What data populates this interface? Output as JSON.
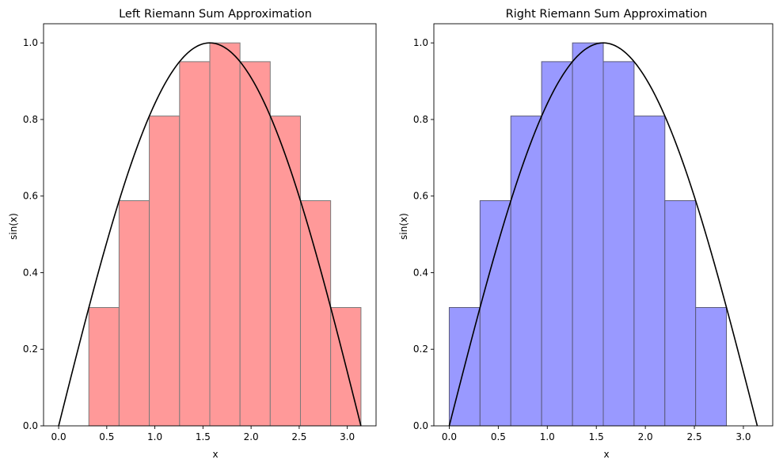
{
  "chart_data": [
    {
      "type": "bar",
      "title": "Left Riemann Sum Approximation",
      "xlabel": "x",
      "ylabel": "sin(x)",
      "xlim": [
        -0.157,
        3.299
      ],
      "ylim": [
        0,
        1.05
      ],
      "xticks": [
        "0.0",
        "0.5",
        "1.0",
        "1.5",
        "2.0",
        "2.5",
        "3.0"
      ],
      "yticks": [
        "0.0",
        "0.2",
        "0.4",
        "0.6",
        "0.8",
        "1.0"
      ],
      "bar_color": "#ff9999",
      "edge_color": "#7a7a7a",
      "curve_color": "#000000",
      "grid": false,
      "bars": [
        {
          "x0": 0.314,
          "x1": 0.628,
          "value": 0.309
        },
        {
          "x0": 0.628,
          "x1": 0.942,
          "value": 0.588
        },
        {
          "x0": 0.942,
          "x1": 1.257,
          "value": 0.809
        },
        {
          "x0": 1.257,
          "x1": 1.571,
          "value": 0.951
        },
        {
          "x0": 1.571,
          "x1": 1.885,
          "value": 1.0
        },
        {
          "x0": 1.885,
          "x1": 2.199,
          "value": 0.951
        },
        {
          "x0": 2.199,
          "x1": 2.513,
          "value": 0.809
        },
        {
          "x0": 2.513,
          "x1": 2.827,
          "value": 0.588
        },
        {
          "x0": 2.827,
          "x1": 3.142,
          "value": 0.309
        }
      ],
      "curve": {
        "function": "sin(x)",
        "x_range": [
          0,
          3.1416
        ]
      }
    },
    {
      "type": "bar",
      "title": "Right Riemann Sum Approximation",
      "xlabel": "x",
      "ylabel": "sin(x)",
      "xlim": [
        -0.157,
        3.299
      ],
      "ylim": [
        0,
        1.05
      ],
      "xticks": [
        "0.0",
        "0.5",
        "1.0",
        "1.5",
        "2.0",
        "2.5",
        "3.0"
      ],
      "yticks": [
        "0.0",
        "0.2",
        "0.4",
        "0.6",
        "0.8",
        "1.0"
      ],
      "bar_color": "#9999ff",
      "edge_color": "#5a5a7a",
      "curve_color": "#000000",
      "grid": false,
      "bars": [
        {
          "x0": 0.0,
          "x1": 0.314,
          "value": 0.309
        },
        {
          "x0": 0.314,
          "x1": 0.628,
          "value": 0.588
        },
        {
          "x0": 0.628,
          "x1": 0.942,
          "value": 0.809
        },
        {
          "x0": 0.942,
          "x1": 1.257,
          "value": 0.951
        },
        {
          "x0": 1.257,
          "x1": 1.571,
          "value": 1.0
        },
        {
          "x0": 1.571,
          "x1": 1.885,
          "value": 0.951
        },
        {
          "x0": 1.885,
          "x1": 2.199,
          "value": 0.809
        },
        {
          "x0": 2.199,
          "x1": 2.513,
          "value": 0.588
        },
        {
          "x0": 2.513,
          "x1": 2.827,
          "value": 0.309
        }
      ],
      "curve": {
        "function": "sin(x)",
        "x_range": [
          0,
          3.1416
        ]
      }
    }
  ]
}
